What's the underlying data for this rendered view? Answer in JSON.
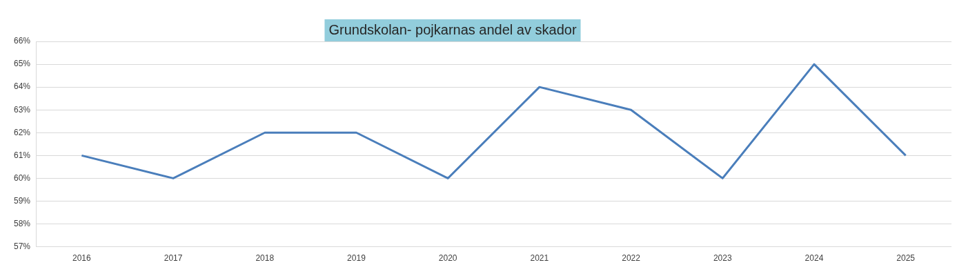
{
  "chart_data": {
    "type": "line",
    "title": "Grundskolan- pojkarnas andel av skador",
    "categories": [
      "2016",
      "2017",
      "2018",
      "2019",
      "2020",
      "2021",
      "2022",
      "2023",
      "2024",
      "2025"
    ],
    "series": [
      {
        "color": "#4a7ebb",
        "values": [
          61,
          60,
          62,
          62,
          60,
          64,
          63,
          60,
          65,
          61
        ]
      }
    ],
    "ylim": [
      57,
      66
    ],
    "yticks": [
      {
        "value": 57,
        "label": "57%"
      },
      {
        "value": 58,
        "label": "58%"
      },
      {
        "value": 59,
        "label": "59%"
      },
      {
        "value": 60,
        "label": "60%"
      },
      {
        "value": 61,
        "label": "61%"
      },
      {
        "value": 62,
        "label": "62%"
      },
      {
        "value": 63,
        "label": "63%"
      },
      {
        "value": 64,
        "label": "64%"
      },
      {
        "value": 65,
        "label": "65%"
      },
      {
        "value": 66,
        "label": "66%"
      }
    ],
    "grid": "y",
    "legend": false,
    "marker": "none",
    "line_style": "solid"
  }
}
